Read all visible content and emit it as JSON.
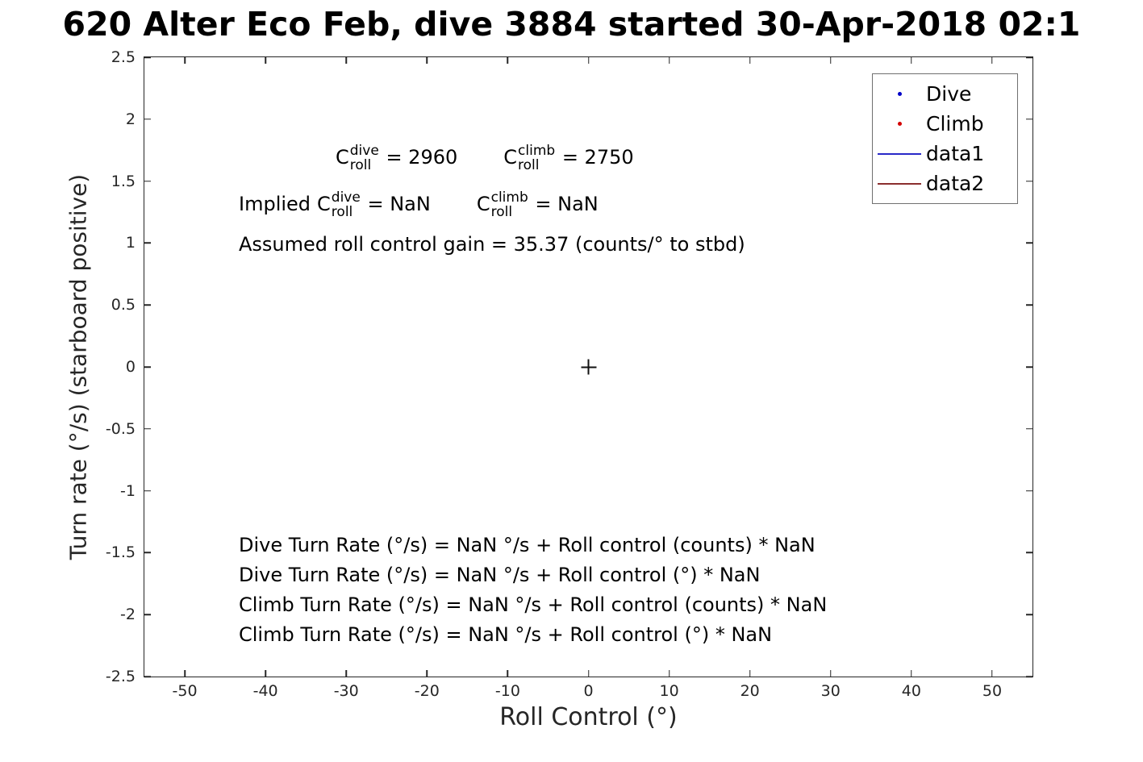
{
  "title": "620 Alter Eco Feb, dive 3884 started 30-Apr-2018 02:1",
  "axes": {
    "xlabel": "Roll Control (°)",
    "ylabel": "Turn rate (°/s) (starboard positive)"
  },
  "legend": {
    "items": [
      {
        "label": "Dive",
        "marker": "dot",
        "color": "#0000c8"
      },
      {
        "label": "Climb",
        "marker": "dot",
        "color": "#d40000"
      },
      {
        "label": "data1",
        "marker": "line",
        "color": "#2929c8"
      },
      {
        "label": "data2",
        "marker": "line",
        "color": "#8b2e2e"
      }
    ]
  },
  "annotations": {
    "line1": {
      "left": {
        "base": "C",
        "sup": "dive",
        "sub": "roll",
        "eq": " = 2960"
      },
      "right": {
        "base": "C",
        "sup": "climb",
        "sub": "roll",
        "eq": " = 2750"
      }
    },
    "line2": {
      "prefix": "Implied",
      "left": {
        "base": "C",
        "sup": "dive",
        "sub": "roll",
        "eq": " = NaN"
      },
      "right": {
        "base": "C",
        "sup": "climb",
        "sub": "roll",
        "eq": " = NaN"
      }
    },
    "line3": "Assumed roll control gain = 35.37 (counts/° to stbd)",
    "equations": [
      "Dive Turn Rate (°/s) = NaN °/s + Roll control (counts) * NaN",
      "Dive Turn Rate (°/s) = NaN °/s + Roll control (°) * NaN",
      "Climb Turn Rate (°/s) = NaN °/s + Roll control (counts) * NaN",
      "Climb Turn Rate (°/s) = NaN °/s + Roll control (°) * NaN"
    ]
  },
  "colors": {
    "axis": "#262626",
    "text": "#000000",
    "dive_marker": "#0000c8",
    "climb_marker": "#d40000",
    "data1_line": "#2929c8",
    "data2_line": "#8b2e2e"
  },
  "chart_data": {
    "type": "scatter",
    "title": "620 Alter Eco Feb, dive 3884 started 30-Apr-2018 02:1",
    "xlabel": "Roll Control (°)",
    "ylabel": "Turn rate (°/s) (starboard positive)",
    "xlim": [
      -55,
      55
    ],
    "ylim": [
      -2.5,
      2.5
    ],
    "xticks": [
      -50,
      -40,
      -30,
      -20,
      -10,
      0,
      10,
      20,
      30,
      40,
      50
    ],
    "yticks": [
      -2.5,
      -2,
      -1.5,
      -1,
      -0.5,
      0,
      0.5,
      1,
      1.5,
      2,
      2.5
    ],
    "grid": false,
    "legend_position": "top-right",
    "series": [
      {
        "name": "Dive",
        "type": "scatter",
        "color": "#0000c8",
        "points": []
      },
      {
        "name": "Climb",
        "type": "scatter",
        "color": "#d40000",
        "points": []
      },
      {
        "name": "data1",
        "type": "line",
        "color": "#2929c8",
        "points": []
      },
      {
        "name": "data2",
        "type": "line",
        "color": "#8b2e2e",
        "points": []
      }
    ],
    "origin_marker": {
      "x": 0,
      "y": 0,
      "marker": "+"
    },
    "annotations": [
      "C_roll^dive = 2960     C_roll^climb = 2750",
      "Implied C_roll^dive = NaN     C_roll^climb = NaN",
      "Assumed roll control gain = 35.37 (counts/° to stbd)",
      "Dive Turn Rate (°/s) = NaN °/s + Roll control (counts) * NaN",
      "Dive Turn Rate (°/s) = NaN °/s + Roll control (°) * NaN",
      "Climb Turn Rate (°/s) = NaN °/s + Roll control (counts) * NaN",
      "Climb Turn Rate (°/s) = NaN °/s + Roll control (°) * NaN"
    ]
  }
}
